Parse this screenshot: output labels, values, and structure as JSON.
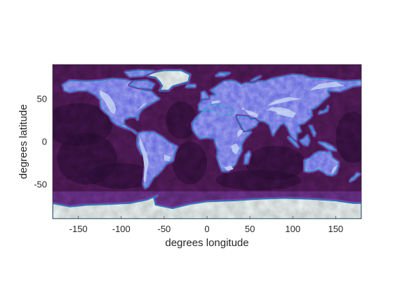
{
  "map": {
    "type": "equirectangular-raster",
    "xlabel": "degrees longitude",
    "ylabel": "degrees latitude",
    "xlim": [
      -180,
      180
    ],
    "ylim": [
      -90,
      90
    ],
    "xticks": [
      -150,
      -100,
      -50,
      0,
      50,
      100,
      150
    ],
    "yticks": [
      50,
      0,
      -50
    ],
    "colors": {
      "deep_ocean": "#2e0f3a",
      "ocean": "#5a1e62",
      "shelf": "#7a3aa0",
      "lowland": "#6a6ee0",
      "upland": "#b8c8f0",
      "mountain": "#f2f2f2",
      "coast": "#1e88c8",
      "ice": "#eef6f6"
    }
  }
}
